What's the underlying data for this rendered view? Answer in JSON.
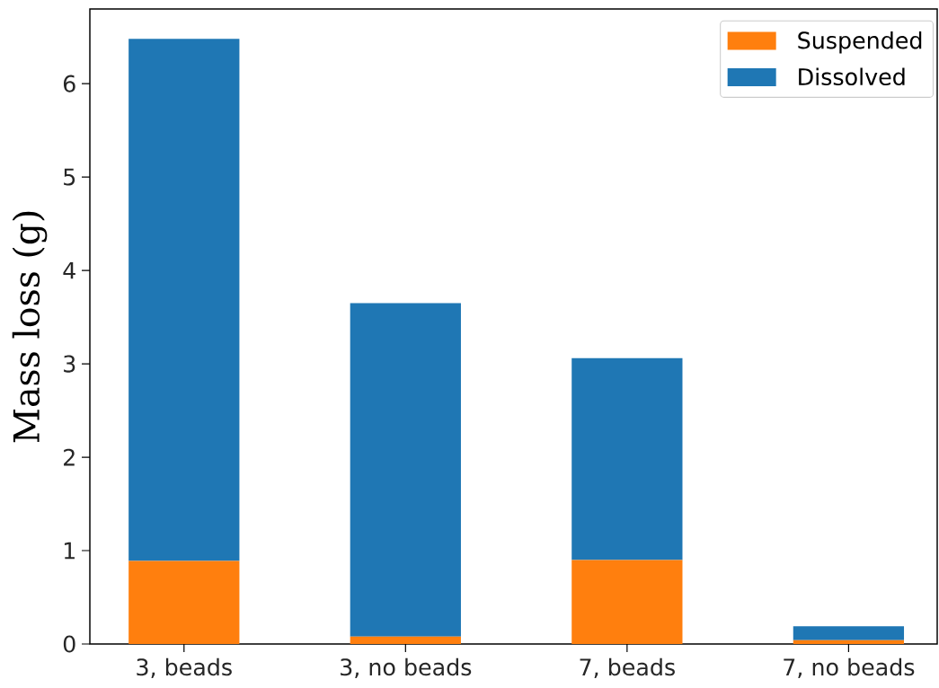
{
  "chart_data": {
    "type": "bar",
    "stacked": true,
    "ylabel": "Mass loss (g)",
    "categories": [
      "3, beads",
      "3, no beads",
      "7, beads",
      "7, no beads"
    ],
    "series": [
      {
        "name": "Suspended",
        "color": "#ff7f0e",
        "values": [
          0.89,
          0.08,
          0.9,
          0.04
        ]
      },
      {
        "name": "Dissolved",
        "color": "#1f77b4",
        "values": [
          5.59,
          3.57,
          2.16,
          0.15
        ]
      }
    ],
    "ylim": [
      0,
      6.8
    ],
    "yticks": [
      0,
      1,
      2,
      3,
      4,
      5,
      6
    ],
    "legend": "top right"
  }
}
